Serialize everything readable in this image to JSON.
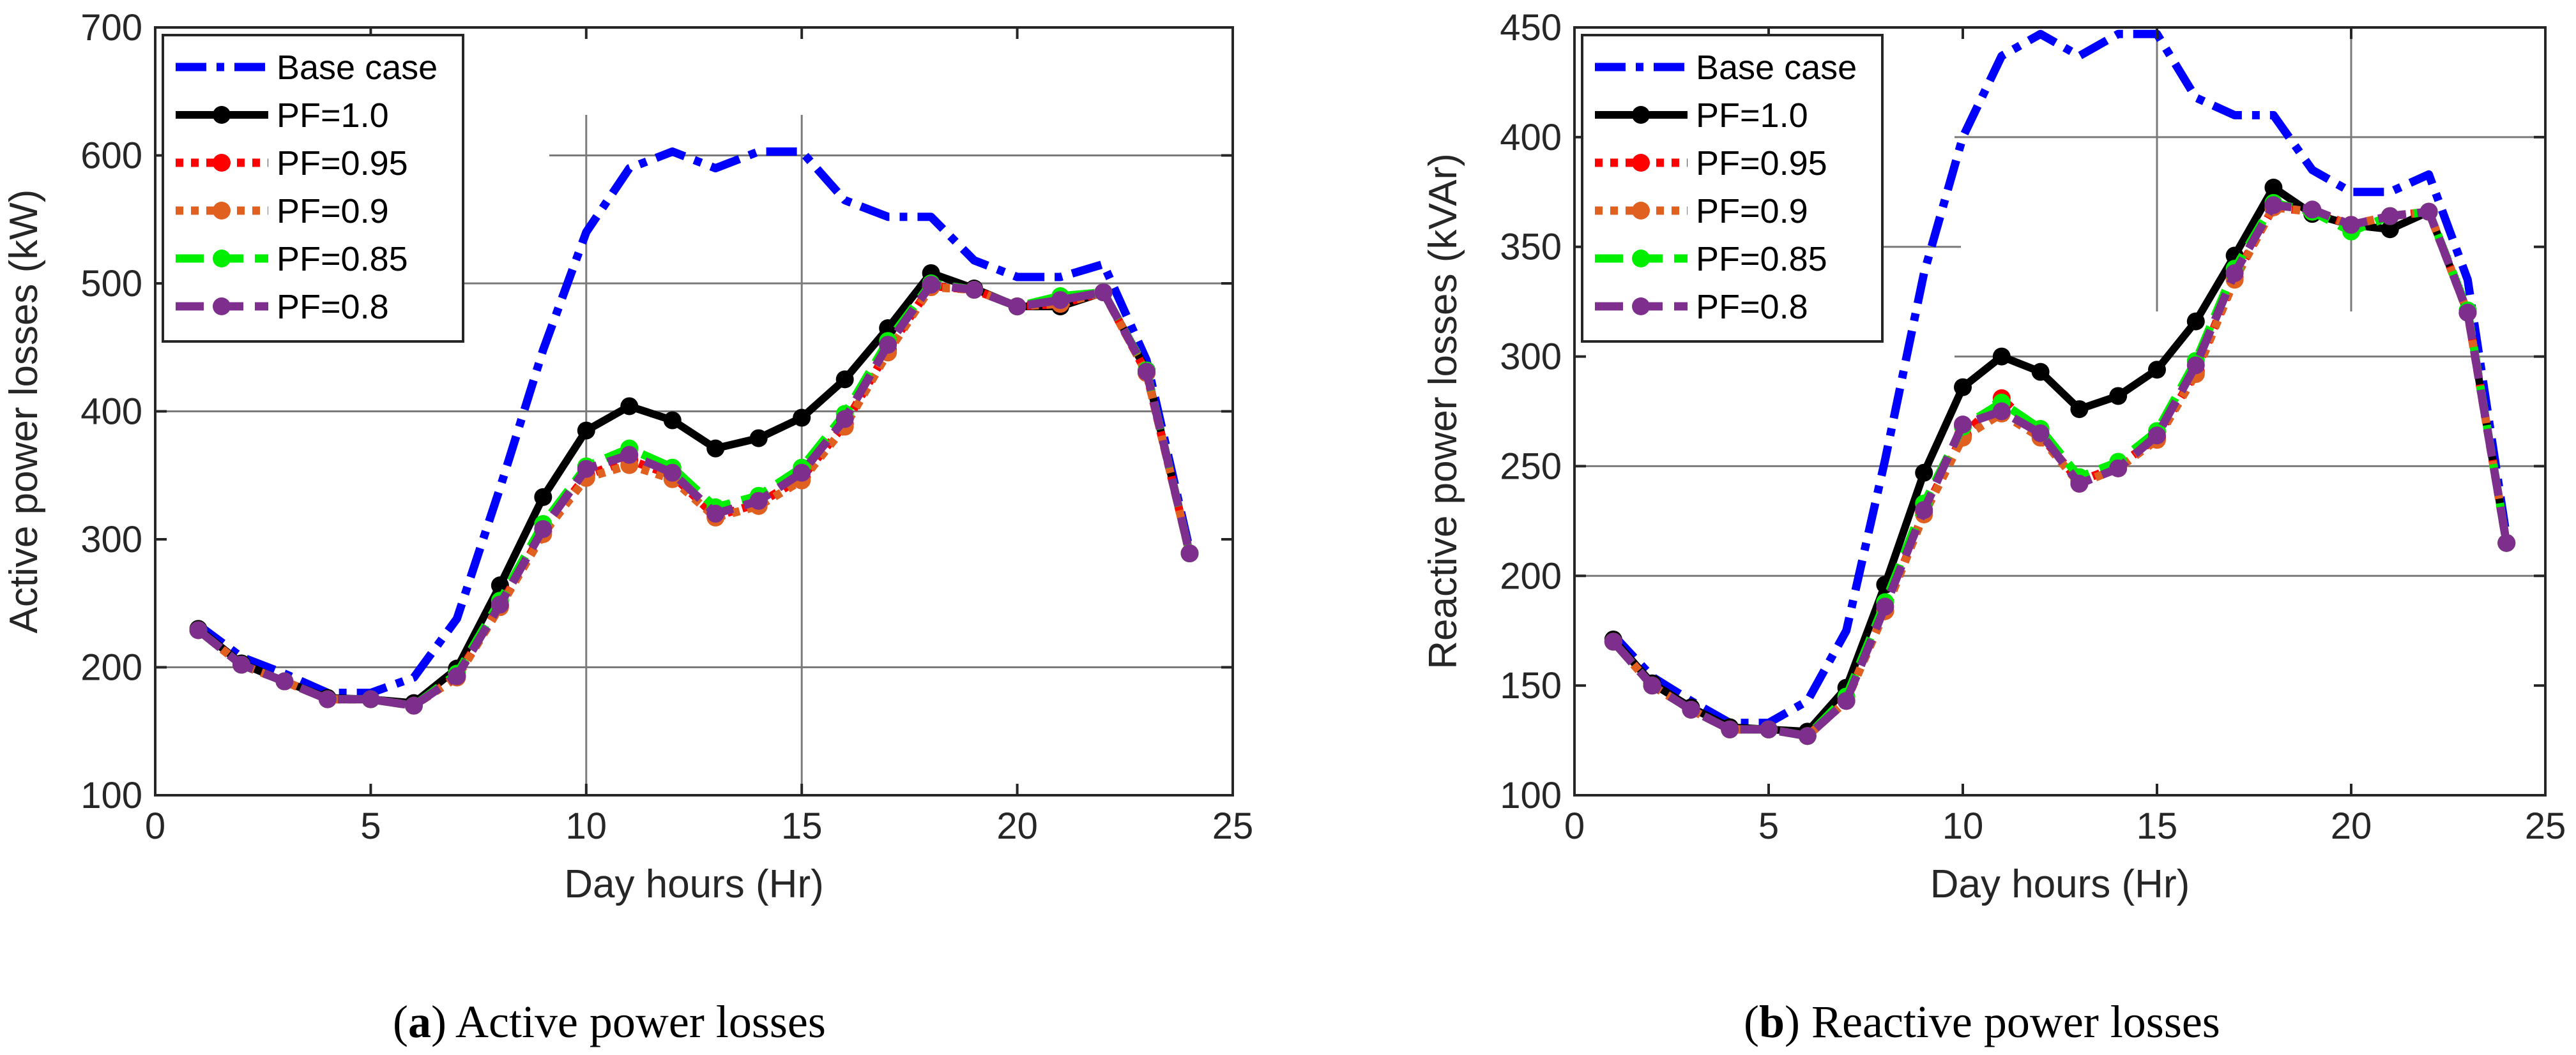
{
  "chart_data": [
    {
      "type": "line",
      "panel": "a",
      "caption_letter": "a",
      "caption_text": " Active power losses",
      "xlabel": "Day hours (Hr)",
      "ylabel": "Active power losses (kW)",
      "xlim": [
        0,
        25
      ],
      "ylim": [
        100,
        700
      ],
      "xticks": [
        0,
        5,
        10,
        15,
        20,
        25
      ],
      "yticks": [
        100,
        200,
        300,
        400,
        500,
        600,
        700
      ],
      "legend_position": "top-left",
      "x": [
        1,
        2,
        3,
        4,
        5,
        6,
        7,
        8,
        9,
        10,
        11,
        12,
        13,
        14,
        15,
        16,
        17,
        18,
        19,
        20,
        21,
        22,
        23,
        24
      ],
      "series": [
        {
          "name": "Base case",
          "color": "#0000ff",
          "style": "dashdot",
          "marker": "none",
          "values": [
            233,
            208,
            195,
            180,
            180,
            192,
            238,
            340,
            448,
            540,
            590,
            603,
            590,
            603,
            603,
            565,
            552,
            552,
            518,
            505,
            505,
            515,
            440,
            292
          ]
        },
        {
          "name": "PF=1.0",
          "color": "#000000",
          "style": "solid",
          "marker": "circle",
          "values": [
            230,
            203,
            189,
            176,
            175,
            172,
            199,
            264,
            333,
            385,
            404,
            393,
            371,
            379,
            395,
            425,
            465,
            508,
            496,
            482,
            482,
            493,
            432,
            289
          ]
        },
        {
          "name": "PF=0.95",
          "color": "#ff0000",
          "style": "dotted",
          "marker": "circle",
          "values": [
            229,
            202,
            189,
            175,
            175,
            170,
            193,
            248,
            306,
            350,
            362,
            350,
            318,
            328,
            348,
            390,
            448,
            498,
            495,
            482,
            484,
            493,
            430,
            289
          ]
        },
        {
          "name": "PF=0.9",
          "color": "#e06020",
          "style": "dotted",
          "marker": "circle",
          "values": [
            229,
            202,
            189,
            175,
            175,
            170,
            192,
            247,
            304,
            348,
            358,
            347,
            317,
            326,
            346,
            388,
            446,
            497,
            495,
            482,
            484,
            493,
            430,
            289
          ]
        },
        {
          "name": "PF=0.85",
          "color": "#00ee00",
          "style": "dashed",
          "marker": "circle",
          "values": [
            229,
            202,
            189,
            175,
            175,
            170,
            195,
            252,
            312,
            357,
            371,
            356,
            325,
            334,
            356,
            398,
            455,
            500,
            495,
            482,
            490,
            493,
            432,
            289
          ]
        },
        {
          "name": "PF=0.8",
          "color": "#7e2f8e",
          "style": "dashed",
          "marker": "circle",
          "values": [
            229,
            202,
            189,
            175,
            175,
            170,
            193,
            249,
            308,
            355,
            366,
            352,
            320,
            330,
            352,
            394,
            452,
            499,
            495,
            482,
            487,
            493,
            431,
            289
          ]
        }
      ]
    },
    {
      "type": "line",
      "panel": "b",
      "caption_letter": "b",
      "caption_text": " Reactive power losses",
      "xlabel": "Day hours (Hr)",
      "ylabel": "Reactive power losses (kVAr)",
      "xlim": [
        0,
        25
      ],
      "ylim": [
        100,
        450
      ],
      "xticks": [
        0,
        5,
        10,
        15,
        20,
        25
      ],
      "yticks": [
        100,
        150,
        200,
        250,
        300,
        350,
        400,
        450
      ],
      "legend_position": "top-left",
      "x": [
        1,
        2,
        3,
        4,
        5,
        6,
        7,
        8,
        9,
        10,
        11,
        12,
        13,
        14,
        15,
        16,
        17,
        18,
        19,
        20,
        21,
        22,
        23,
        24
      ],
      "series": [
        {
          "name": "Base case",
          "color": "#0000ff",
          "style": "dashdot",
          "marker": "none",
          "values": [
            173,
            154,
            143,
            133,
            133,
            143,
            175,
            253,
            338,
            400,
            437,
            447,
            437,
            447,
            447,
            418,
            410,
            410,
            385,
            375,
            375,
            383,
            335,
            218
          ]
        },
        {
          "name": "PF=1.0",
          "color": "#000000",
          "style": "solid",
          "marker": "circle",
          "values": [
            171,
            151,
            140,
            131,
            130,
            129,
            149,
            196,
            247,
            286,
            300,
            293,
            276,
            282,
            294,
            316,
            346,
            377,
            365,
            360,
            358,
            366,
            320,
            215
          ]
        },
        {
          "name": "PF=0.95",
          "color": "#ff0000",
          "style": "dotted",
          "marker": "circle",
          "values": [
            170,
            150,
            139,
            130,
            130,
            127,
            143,
            184,
            229,
            264,
            281,
            264,
            243,
            250,
            263,
            293,
            336,
            368,
            366,
            360,
            364,
            366,
            320,
            215
          ]
        },
        {
          "name": "PF=0.9",
          "color": "#e06020",
          "style": "dotted",
          "marker": "circle",
          "values": [
            170,
            150,
            139,
            130,
            130,
            127,
            143,
            184,
            228,
            263,
            274,
            263,
            242,
            249,
            262,
            292,
            335,
            368,
            366,
            360,
            364,
            366,
            320,
            215
          ]
        },
        {
          "name": "PF=0.85",
          "color": "#00ee00",
          "style": "dashed",
          "marker": "circle",
          "values": [
            170,
            150,
            139,
            130,
            130,
            127,
            145,
            188,
            233,
            268,
            279,
            267,
            245,
            252,
            266,
            298,
            340,
            370,
            366,
            357,
            364,
            366,
            321,
            215
          ]
        },
        {
          "name": "PF=0.8",
          "color": "#7e2f8e",
          "style": "dashed",
          "marker": "circle",
          "values": [
            170,
            150,
            139,
            130,
            130,
            127,
            143,
            186,
            230,
            269,
            275,
            265,
            242,
            249,
            264,
            296,
            338,
            369,
            367,
            360,
            364,
            366,
            320,
            215
          ]
        }
      ]
    }
  ]
}
